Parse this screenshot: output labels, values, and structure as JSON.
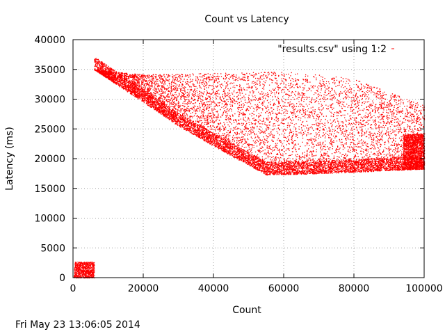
{
  "chart_data": {
    "type": "scatter",
    "title": "Count vs Latency",
    "xlabel": "Count",
    "ylabel": "Latency (ms)",
    "xlim": [
      0,
      100000
    ],
    "ylim": [
      0,
      40000
    ],
    "xticks": [
      0,
      20000,
      40000,
      60000,
      80000,
      100000
    ],
    "yticks": [
      0,
      5000,
      10000,
      15000,
      20000,
      25000,
      30000,
      35000,
      40000
    ],
    "grid": true,
    "legend_position": "top-right",
    "series": [
      {
        "name": "\"results.csv\" using 1:2",
        "color": "#ff0000",
        "regions": [
          {
            "description_points": "initial band",
            "x": [
              300,
              6000
            ],
            "y_low": [
              0,
              0
            ],
            "y_high": [
              2700,
              2700
            ]
          },
          {
            "description_points": "main cloud lower envelope",
            "lower_boundary": [
              [
                6000,
                35000
              ],
              [
                20000,
                29500
              ],
              [
                30000,
                25500
              ],
              [
                45000,
                20500
              ],
              [
                55000,
                17300
              ],
              [
                70000,
                17500
              ],
              [
                85000,
                17900
              ],
              [
                100000,
                18300
              ]
            ],
            "upper_boundary": [
              [
                6000,
                35000
              ],
              [
                20000,
                34200
              ],
              [
                40000,
                34400
              ],
              [
                60000,
                34700
              ],
              [
                80000,
                33500
              ],
              [
                100000,
                29000
              ]
            ]
          }
        ]
      }
    ]
  },
  "footer": {
    "timestamp": "Fri May 23 13:06:05 2014"
  }
}
